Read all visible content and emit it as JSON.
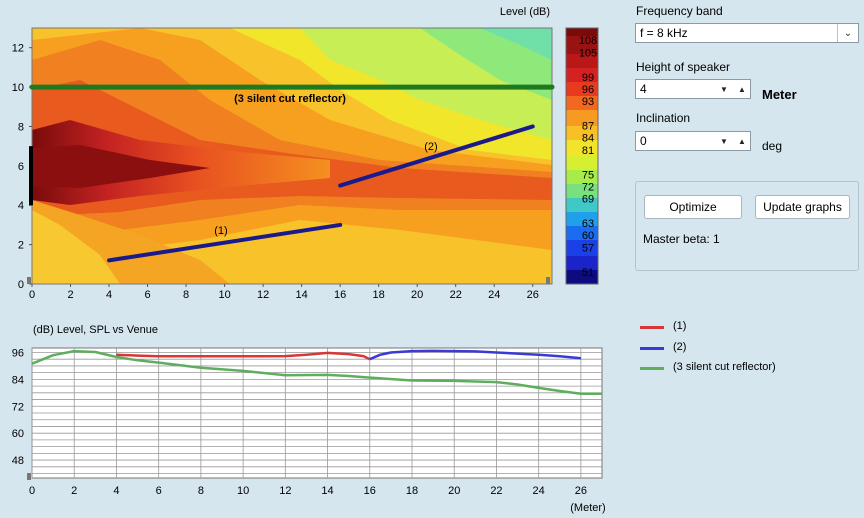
{
  "heatmap": {
    "level_label": "Level  (dB)",
    "y_ticks": [
      "12",
      "10",
      "8",
      "6",
      "4",
      "2",
      "0"
    ],
    "x_ticks": [
      "0",
      "2",
      "4",
      "6",
      "8",
      "10",
      "12",
      "14",
      "16",
      "18",
      "20",
      "22",
      "24",
      "26"
    ],
    "reflector_label": "(3 silent cut reflector)",
    "seg1_label": "(1)",
    "seg2_label": "(2)",
    "colorbar_ticks": [
      "108",
      "105",
      "99",
      "96",
      "93",
      "87",
      "84",
      "81",
      "75",
      "72",
      "69",
      "63",
      "60",
      "57",
      "51"
    ]
  },
  "graph": {
    "title": "(dB)  Level, SPL vs Venue",
    "y_ticks": [
      "96",
      "84",
      "72",
      "60",
      "48"
    ],
    "x_ticks": [
      "0",
      "2",
      "4",
      "6",
      "8",
      "10",
      "12",
      "14",
      "16",
      "18",
      "20",
      "22",
      "24",
      "26"
    ],
    "x_unit": "(Meter)"
  },
  "legend": {
    "items": [
      {
        "label": "(1)",
        "color": "#d63838"
      },
      {
        "label": "(2)",
        "color": "#3a3ad4"
      },
      {
        "label": "(3 silent cut reflector)",
        "color": "#5fae5f"
      }
    ]
  },
  "controls": {
    "frequency_label": "Frequency band",
    "frequency_value": "f = 8 kHz",
    "height_label": "Height of speaker",
    "height_value": "4",
    "height_unit": "Meter",
    "inclination_label": "Inclination",
    "inclination_value": "0",
    "inclination_unit": "deg",
    "optimize_label": "Optimize",
    "update_label": "Update graphs",
    "master_beta": "Master beta: 1"
  },
  "chart_data": [
    {
      "type": "heatmap",
      "title": "",
      "xlabel": "",
      "ylabel": "",
      "colorbar_label": "Level  (dB)",
      "xlim": [
        0,
        27
      ],
      "ylim": [
        0,
        13
      ],
      "colorbar_range": [
        48,
        111
      ],
      "speaker": {
        "x": 0,
        "y_from": 4,
        "y_to": 7
      },
      "overlays": [
        {
          "name": "(1)",
          "x": [
            4,
            16
          ],
          "y": [
            1.2,
            3.0
          ],
          "color": "#1a1a8c"
        },
        {
          "name": "(2)",
          "x": [
            16,
            26
          ],
          "y": [
            5.0,
            8.0
          ],
          "color": "#1a1a8c"
        },
        {
          "name": "(3 silent cut reflector)",
          "x": [
            0,
            27
          ],
          "y": [
            10,
            10
          ],
          "color": "#1f7a1f"
        }
      ]
    },
    {
      "type": "line",
      "title": "(dB)  Level, SPL vs Venue",
      "xlabel": "(Meter)",
      "ylabel": "(dB)",
      "xlim": [
        0,
        27
      ],
      "ylim": [
        40,
        98
      ],
      "grid": true,
      "legend": "right",
      "series": [
        {
          "name": "(1)",
          "color": "#d63838",
          "x": [
            4,
            5,
            6,
            8,
            10,
            12,
            13,
            14,
            15,
            15.7,
            16
          ],
          "y": [
            95,
            94.6,
            94.3,
            94.3,
            94.3,
            94.4,
            95,
            95.8,
            95.3,
            94.4,
            93
          ]
        },
        {
          "name": "(2)",
          "color": "#3a3ad4",
          "x": [
            16,
            16.5,
            17,
            18,
            19,
            20,
            21,
            22,
            23,
            24,
            25,
            26
          ],
          "y": [
            93,
            95,
            96,
            96.6,
            96.7,
            96.6,
            96.5,
            96,
            95.5,
            95,
            94.3,
            93.4
          ]
        },
        {
          "name": "(3 silent cut reflector)",
          "color": "#5fae5f",
          "x": [
            0,
            1,
            2,
            3,
            4,
            5,
            6,
            8,
            10,
            12,
            14,
            15,
            16,
            18,
            20,
            22,
            23,
            24,
            25,
            26,
            27
          ],
          "y": [
            91,
            94.8,
            96.6,
            96.2,
            94,
            92.5,
            91.5,
            89.2,
            87.8,
            85.8,
            86,
            85.5,
            84.8,
            83.5,
            83.3,
            82.8,
            81.7,
            80.2,
            78.8,
            77.6,
            77.6
          ]
        }
      ]
    }
  ]
}
